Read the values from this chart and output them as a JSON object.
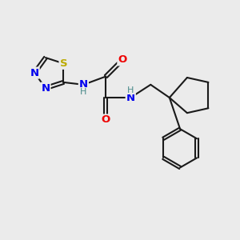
{
  "bg_color": "#ebebeb",
  "bond_color": "#1a1a1a",
  "bond_width": 1.5,
  "atom_colors": {
    "N": "#0000ee",
    "S": "#bbaa00",
    "O": "#ee0000",
    "C": "#1a1a1a",
    "H": "#4a8a8a"
  },
  "font_size_atoms": 9.5,
  "font_size_H": 8.0,
  "dbl_off": 0.055
}
